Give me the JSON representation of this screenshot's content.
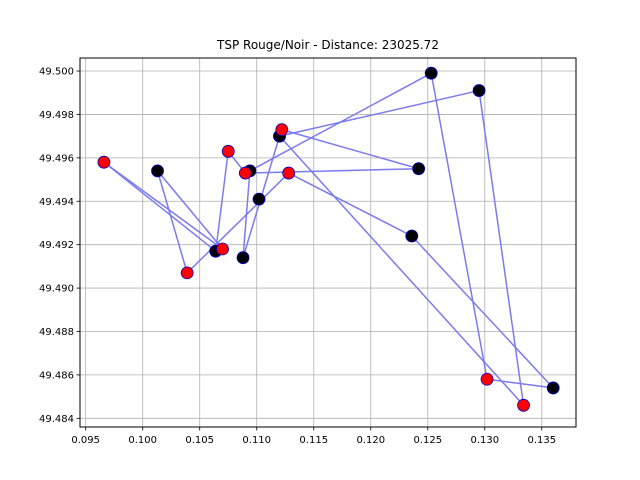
{
  "chart_data": {
    "type": "scatter",
    "title": "TSP Rouge/Noir - Distance: 23025.72",
    "xlabel": "",
    "ylabel": "",
    "xlim": [
      0.0945,
      0.138
    ],
    "ylim": [
      49.4836,
      49.5006
    ],
    "grid": true,
    "x_ticks": [
      0.095,
      0.1,
      0.105,
      0.11,
      0.115,
      0.12,
      0.125,
      0.13,
      0.135
    ],
    "x_tick_labels": [
      "0.095",
      "0.100",
      "0.105",
      "0.110",
      "0.115",
      "0.120",
      "0.125",
      "0.130",
      "0.135"
    ],
    "y_ticks": [
      49.484,
      49.486,
      49.488,
      49.49,
      49.492,
      49.494,
      49.496,
      49.498,
      49.5
    ],
    "y_tick_labels": [
      "49.484",
      "49.486",
      "49.488",
      "49.490",
      "49.492",
      "49.494",
      "49.496",
      "49.498",
      "49.500"
    ],
    "route_color": "#7b7bf0",
    "point_colors": {
      "red": "#ff0000",
      "black": "#000000",
      "outline": "#0000c8"
    },
    "route": [
      {
        "x": 0.1253,
        "y": 49.4999,
        "color": "black"
      },
      {
        "x": 0.1094,
        "y": 49.4954,
        "color": "black"
      },
      {
        "x": 0.1088,
        "y": 49.4914,
        "color": "black"
      },
      {
        "x": 0.112,
        "y": 49.497,
        "color": "red"
      },
      {
        "x": 0.1295,
        "y": 49.4991,
        "color": "black"
      },
      {
        "x": 0.1334,
        "y": 49.4846,
        "color": "red"
      },
      {
        "x": 0.112,
        "y": 49.497,
        "color": "black"
      },
      {
        "x": 0.1122,
        "y": 49.4973,
        "color": "red"
      },
      {
        "x": 0.1242,
        "y": 49.4955,
        "color": "black"
      },
      {
        "x": 0.109,
        "y": 49.4953,
        "color": "red"
      },
      {
        "x": 0.1075,
        "y": 49.4963,
        "color": "red"
      },
      {
        "x": 0.1064,
        "y": 49.4917,
        "color": "black"
      },
      {
        "x": 0.0966,
        "y": 49.4958,
        "color": "red"
      },
      {
        "x": 0.107,
        "y": 49.4918,
        "color": "red"
      },
      {
        "x": 0.1013,
        "y": 49.4954,
        "color": "black"
      },
      {
        "x": 0.1039,
        "y": 49.4907,
        "color": "red"
      },
      {
        "x": 0.1128,
        "y": 49.4953,
        "color": "red"
      },
      {
        "x": 0.1236,
        "y": 49.4924,
        "color": "black"
      },
      {
        "x": 0.136,
        "y": 49.4854,
        "color": "black"
      },
      {
        "x": 0.1302,
        "y": 49.4858,
        "color": "red"
      }
    ],
    "extra_points": [
      {
        "x": 0.1102,
        "y": 49.4941,
        "color": "black"
      }
    ]
  }
}
